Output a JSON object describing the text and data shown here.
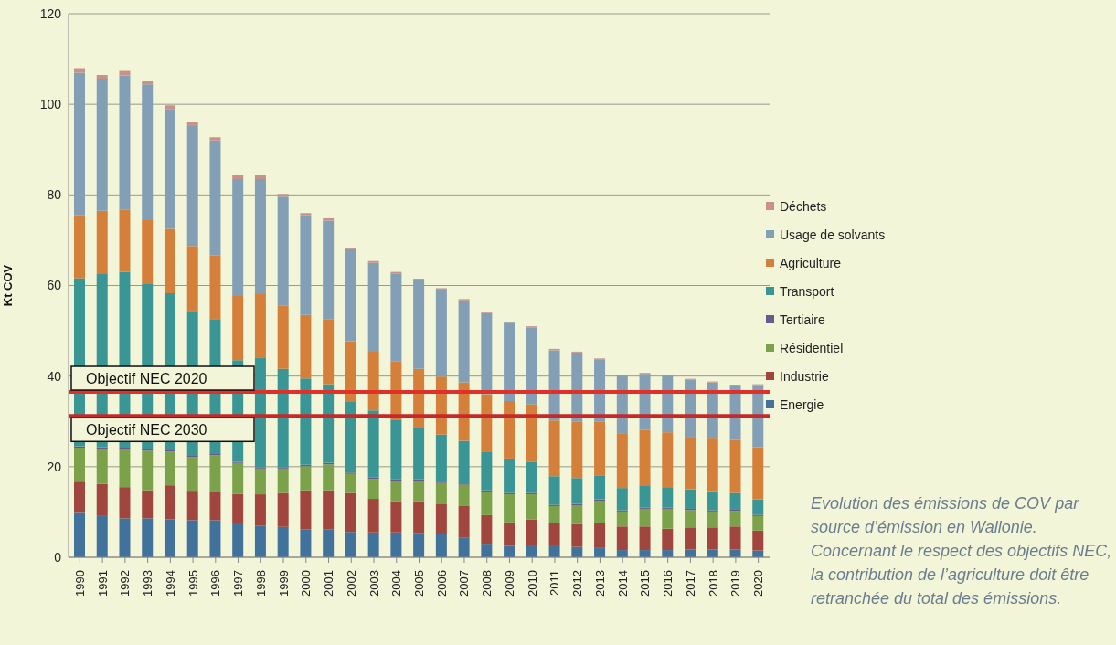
{
  "chart_data": {
    "type": "bar",
    "stacked": true,
    "ylabel": "Kt COV",
    "categories": [
      "1990",
      "1991",
      "1992",
      "1993",
      "1994",
      "1995",
      "1996",
      "1997",
      "1998",
      "1999",
      "2000",
      "2001",
      "2002",
      "2003",
      "2004",
      "2005",
      "2006",
      "2007",
      "2008",
      "2009",
      "2010",
      "2011",
      "2012",
      "2013",
      "2014",
      "2015",
      "2016",
      "2017",
      "2018",
      "2019",
      "2020"
    ],
    "series": [
      {
        "name": "Energie",
        "color": "#41729b",
        "values": [
          10.0,
          9.1,
          8.6,
          8.6,
          8.4,
          8.2,
          8.2,
          7.5,
          7.0,
          6.7,
          6.2,
          6.2,
          5.6,
          5.5,
          5.5,
          5.3,
          5.1,
          4.4,
          3.0,
          2.5,
          2.7,
          2.7,
          2.3,
          2.2,
          1.6,
          1.6,
          1.6,
          1.7,
          1.7,
          1.7,
          1.5
        ]
      },
      {
        "name": "Industrie",
        "color": "#a1453f",
        "values": [
          6.7,
          7.1,
          6.9,
          6.2,
          7.5,
          6.5,
          6.2,
          6.5,
          6.9,
          7.5,
          8.6,
          8.6,
          8.6,
          7.4,
          6.9,
          7.1,
          6.6,
          6.9,
          6.3,
          5.2,
          5.6,
          4.9,
          5.0,
          5.3,
          5.2,
          5.2,
          4.7,
          4.9,
          4.9,
          5.1,
          4.4
        ]
      },
      {
        "name": "Résidentiel",
        "color": "#7ba24a",
        "values": [
          7.5,
          7.8,
          8.4,
          8.7,
          7.4,
          7.4,
          8.1,
          6.8,
          5.7,
          5.4,
          5.3,
          5.7,
          4.2,
          4.4,
          4.5,
          4.5,
          4.7,
          4.7,
          5.2,
          6.2,
          5.6,
          3.7,
          4.2,
          5.0,
          3.3,
          3.9,
          4.4,
          3.8,
          3.5,
          3.4,
          3.2
        ]
      },
      {
        "name": "Tertiaire",
        "color": "#6a5a8c",
        "values": [
          0.3,
          0.3,
          0.3,
          0.3,
          0.3,
          0.3,
          0.3,
          0.3,
          0.3,
          0.3,
          0.3,
          0.3,
          0.3,
          0.3,
          0.3,
          0.3,
          0.3,
          0.3,
          0.3,
          0.3,
          0.3,
          0.3,
          0.3,
          0.3,
          0.3,
          0.3,
          0.3,
          0.3,
          0.3,
          0.3,
          0.3
        ]
      },
      {
        "name": "Transport",
        "color": "#3a9595",
        "values": [
          37.1,
          38.2,
          38.8,
          36.5,
          34.7,
          32.0,
          29.8,
          22.4,
          24.2,
          21.7,
          19.1,
          17.4,
          15.6,
          14.8,
          13.2,
          11.6,
          10.4,
          9.4,
          8.4,
          7.6,
          6.9,
          6.3,
          5.7,
          5.3,
          4.9,
          4.9,
          4.5,
          4.3,
          4.2,
          3.7,
          3.4
        ]
      },
      {
        "name": "Agriculture",
        "color": "#d4803b",
        "values": [
          13.9,
          14.0,
          13.8,
          14.1,
          14.2,
          14.3,
          14.0,
          14.2,
          14.0,
          14.0,
          14.0,
          14.4,
          13.4,
          13.0,
          12.9,
          12.8,
          12.8,
          12.9,
          12.8,
          12.7,
          12.7,
          12.3,
          12.5,
          11.9,
          12.1,
          12.2,
          12.1,
          11.6,
          11.8,
          11.7,
          11.5
        ]
      },
      {
        "name": "Usage de solvants",
        "color": "#829fb5",
        "values": [
          31.5,
          29.1,
          29.6,
          30.0,
          26.5,
          26.5,
          25.4,
          25.8,
          25.4,
          24.0,
          22.0,
          21.7,
          20.3,
          19.6,
          19.3,
          19.5,
          19.2,
          18.1,
          17.9,
          17.3,
          16.9,
          15.5,
          15.2,
          13.7,
          12.7,
          12.4,
          12.5,
          12.6,
          12.2,
          12.0,
          13.7
        ]
      },
      {
        "name": "Déchets",
        "color": "#c9918a",
        "values": [
          1.0,
          0.9,
          1.0,
          0.7,
          0.8,
          0.9,
          0.7,
          0.8,
          0.8,
          0.6,
          0.5,
          0.5,
          0.3,
          0.4,
          0.4,
          0.4,
          0.3,
          0.3,
          0.3,
          0.2,
          0.3,
          0.3,
          0.2,
          0.2,
          0.2,
          0.2,
          0.2,
          0.2,
          0.2,
          0.2,
          0.2
        ]
      }
    ],
    "ylim": [
      0,
      120
    ],
    "yticks": [
      0,
      20,
      40,
      60,
      80,
      100,
      120
    ],
    "grid": "y",
    "legend": "right",
    "ref_lines": [
      {
        "axis": "y",
        "value": 36.5,
        "label": "Objectif NEC 2020",
        "color": "#e0302a"
      },
      {
        "axis": "y",
        "value": 31.2,
        "label": "Objectif NEC 2030",
        "color": "#c8282a"
      }
    ],
    "annotations": [
      "Evolution des émissions de COV par source d’émission en Wallonie. Concernant le respect des objectifs NEC, la contribution de l’agriculture doit être retranchée du total des émissions."
    ]
  }
}
